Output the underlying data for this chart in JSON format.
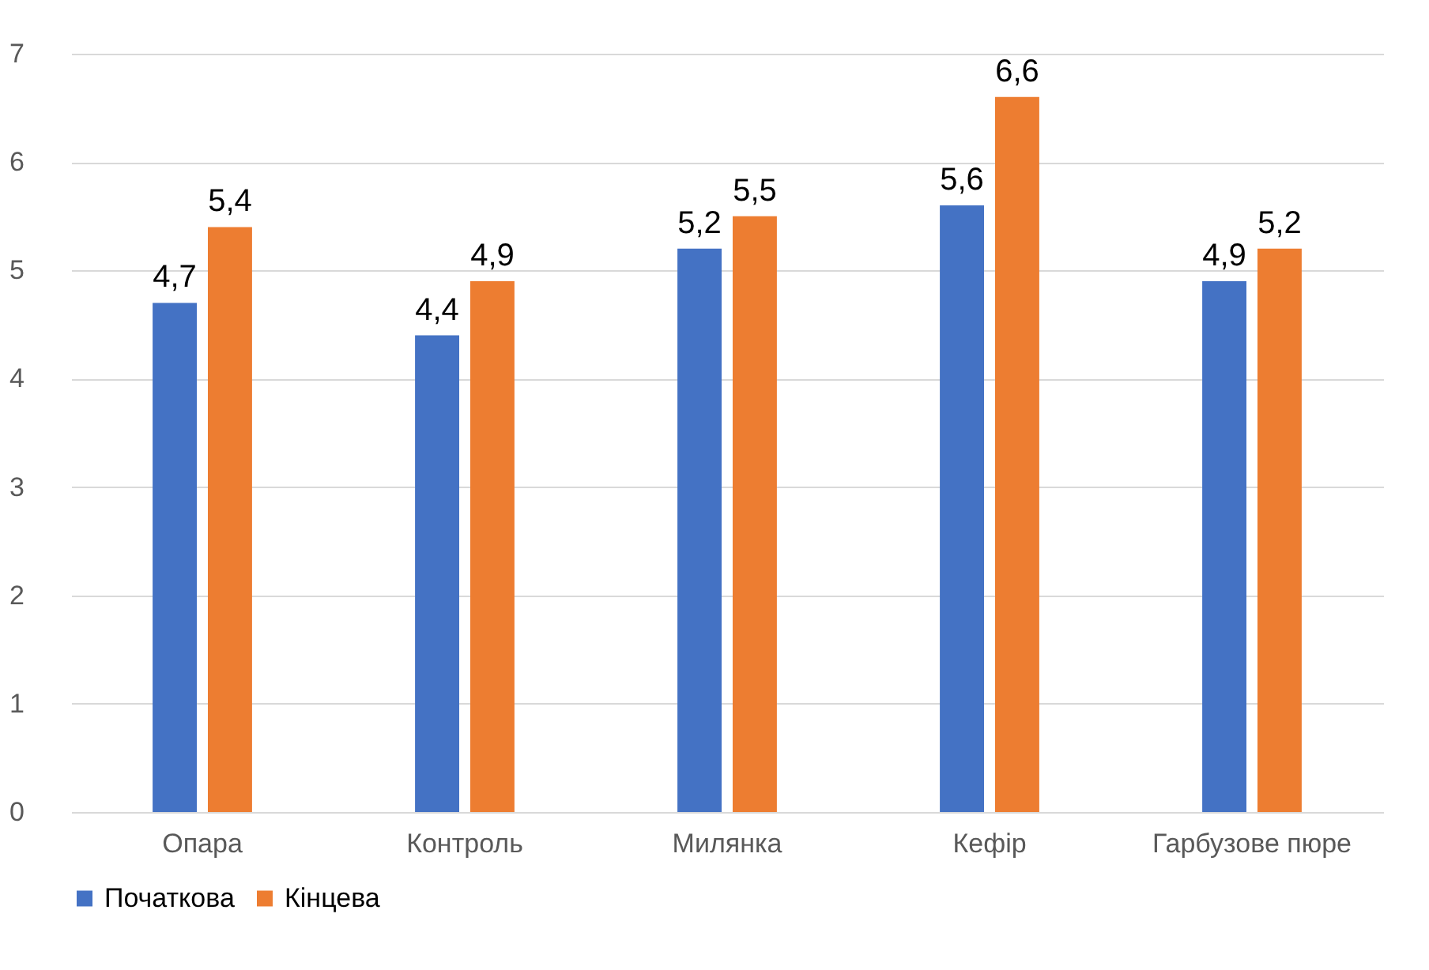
{
  "chart_data": {
    "type": "bar",
    "categories": [
      "Опара",
      "Контроль",
      "Милянка",
      "Кефір",
      "Гарбузове пюре"
    ],
    "series": [
      {
        "name": "Початкова",
        "color": "#4472c4",
        "values": [
          4.7,
          4.4,
          5.2,
          5.6,
          4.9
        ],
        "value_labels": [
          "4,7",
          "4,4",
          "5,2",
          "5,6",
          "4,9"
        ]
      },
      {
        "name": "Кінцева",
        "color": "#ed7d31",
        "values": [
          5.4,
          4.9,
          5.5,
          6.6,
          5.2
        ],
        "value_labels": [
          "5,4",
          "4,9",
          "5,5",
          "6,6",
          "5,2"
        ]
      }
    ],
    "ylim": [
      0,
      7
    ],
    "yticks": [
      0,
      1,
      2,
      3,
      4,
      5,
      6,
      7
    ],
    "grid": "y",
    "legend": "bottom"
  }
}
